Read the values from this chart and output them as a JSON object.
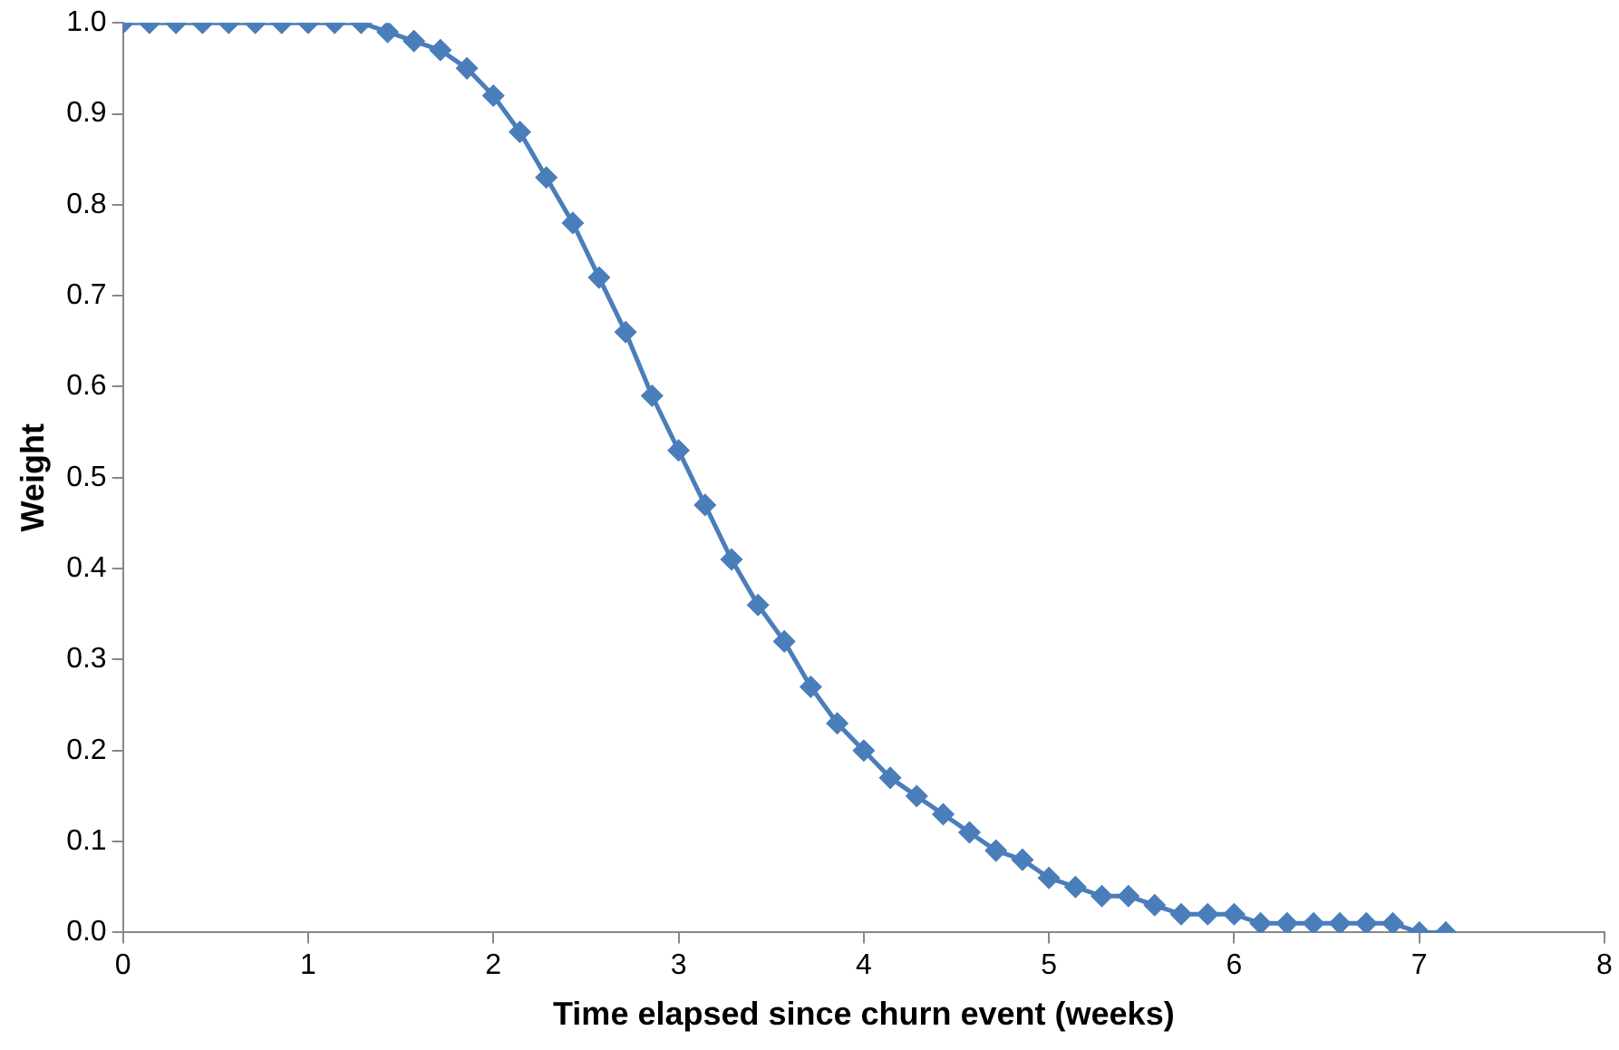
{
  "chart_data": {
    "type": "line",
    "xlabel": "Time elapsed since churn event (weeks)",
    "ylabel": "Weight",
    "xlim": [
      0,
      8
    ],
    "xticks": [
      0,
      1,
      2,
      3,
      4,
      5,
      6,
      7,
      8
    ],
    "ylim": [
      0,
      1
    ],
    "yticks": [
      {
        "value": 0,
        "label": "0.0"
      },
      {
        "value": 0.1,
        "label": "0.1"
      },
      {
        "value": 0.2,
        "label": "0.2"
      },
      {
        "value": 0.3,
        "label": "0.3"
      },
      {
        "value": 0.4,
        "label": "0.4"
      },
      {
        "value": 0.5,
        "label": "0.5"
      },
      {
        "value": 0.6,
        "label": "0.6"
      },
      {
        "value": 0.7,
        "label": "0.7"
      },
      {
        "value": 0.8,
        "label": "0.8"
      },
      {
        "value": 0.9,
        "label": "0.9"
      },
      {
        "value": 1,
        "label": "1.0"
      }
    ],
    "grid": false,
    "legend": false,
    "marker": "diamond",
    "line_style": "solid",
    "series": [
      {
        "color": "#4a7ebb",
        "x": [
          0,
          0.143,
          0.286,
          0.429,
          0.571,
          0.714,
          0.857,
          1,
          1.143,
          1.286,
          1.429,
          1.571,
          1.714,
          1.857,
          2,
          2.143,
          2.286,
          2.429,
          2.571,
          2.714,
          2.857,
          3,
          3.143,
          3.286,
          3.429,
          3.571,
          3.714,
          3.857,
          4,
          4.143,
          4.286,
          4.429,
          4.571,
          4.714,
          4.857,
          5,
          5.143,
          5.286,
          5.429,
          5.571,
          5.714,
          5.857,
          6,
          6.143,
          6.286,
          6.429,
          6.571,
          6.714,
          6.857,
          7,
          7.143
        ],
        "values": [
          1,
          1,
          1,
          1,
          1,
          1,
          1,
          1,
          1,
          1,
          0.99,
          0.98,
          0.97,
          0.95,
          0.92,
          0.88,
          0.83,
          0.78,
          0.72,
          0.66,
          0.59,
          0.53,
          0.47,
          0.41,
          0.36,
          0.32,
          0.27,
          0.23,
          0.2,
          0.17,
          0.15,
          0.13,
          0.11,
          0.09,
          0.08,
          0.06,
          0.05,
          0.04,
          0.04,
          0.03,
          0.02,
          0.02,
          0.02,
          0.01,
          0.01,
          0.01,
          0.01,
          0.01,
          0.01,
          0.0,
          0.0
        ]
      }
    ]
  }
}
